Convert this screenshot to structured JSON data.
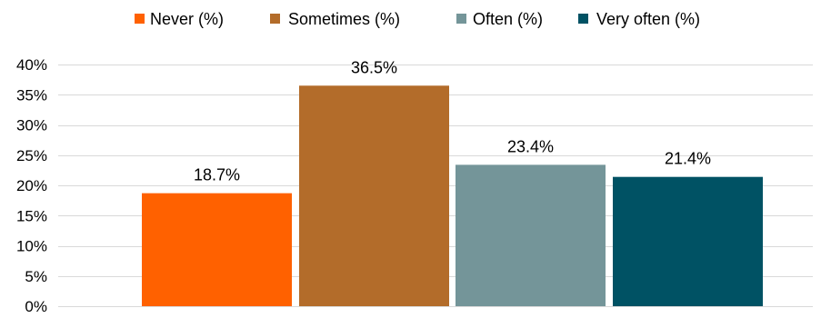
{
  "chart_data": {
    "type": "bar",
    "title": "",
    "xlabel": "",
    "ylabel": "",
    "categories": [
      ""
    ],
    "series": [
      {
        "name": "Never (%)",
        "values": [
          18.7
        ],
        "label": "18.7%",
        "color": "#FF6100"
      },
      {
        "name": "Sometimes (%)",
        "values": [
          36.5
        ],
        "label": "36.5%",
        "color": "#B36C2A"
      },
      {
        "name": "Often (%)",
        "values": [
          23.4
        ],
        "label": "23.4%",
        "color": "#749599"
      },
      {
        "name": "Very often (%)",
        "values": [
          21.4
        ],
        "label": "21.4%",
        "color": "#005264"
      }
    ],
    "ylim": [
      0,
      40
    ],
    "yticks": [
      0,
      5,
      10,
      15,
      20,
      25,
      30,
      35,
      40
    ],
    "ytick_labels": [
      "0%",
      "5%",
      "10%",
      "15%",
      "20%",
      "25%",
      "30%",
      "35%",
      "40%"
    ],
    "legend_position": "top",
    "grid": true,
    "gridline_color": "#D9D9D9"
  }
}
